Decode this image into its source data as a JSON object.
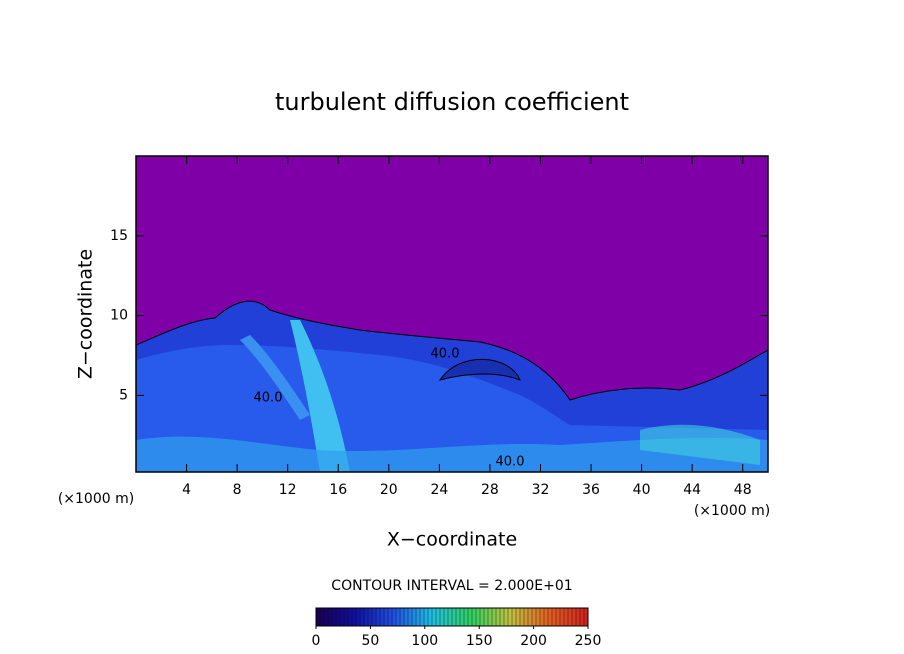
{
  "chart_data": {
    "type": "contour",
    "title": "turbulent diffusion coefficient",
    "x_label": "X−coordinate",
    "y_label": "Z−coordinate",
    "x_unit_label": "(×1000 m)",
    "y_unit_label": "(×1000 m)",
    "xlim": [
      0,
      50
    ],
    "xticks": [
      4,
      8,
      12,
      16,
      20,
      24,
      28,
      32,
      36,
      40,
      44,
      48
    ],
    "ylim": [
      0.2,
      20
    ],
    "yticks": [
      5,
      10,
      15
    ],
    "background_color": "#8000a8",
    "contour_labels": [
      "40.0",
      "40.0",
      "40.0"
    ],
    "contour_interval_label": "CONTOUR INTERVAL = 2.000E+01",
    "colorbar": {
      "lim": [
        0,
        250
      ],
      "ticks": [
        0,
        50,
        100,
        150,
        200,
        250
      ],
      "colors": [
        "#1a0050",
        "#1010a0",
        "#2050e0",
        "#20c0e0",
        "#30d060",
        "#c0c040",
        "#e06020",
        "#d02020"
      ]
    }
  }
}
